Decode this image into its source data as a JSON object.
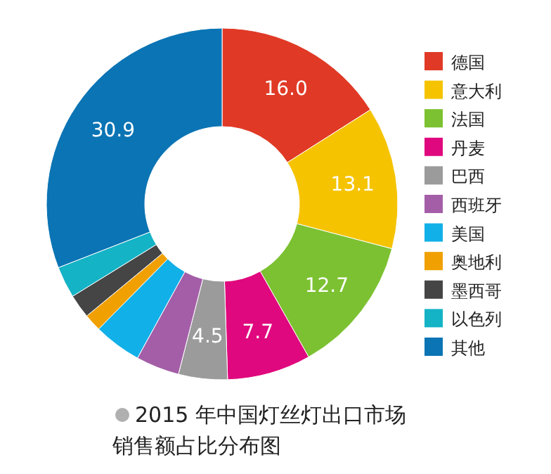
{
  "chart_data": {
    "type": "donut",
    "title": "2015 年中国灯丝灯出口市场销售额占比分布图",
    "categories": [
      "德国",
      "意大利",
      "法国",
      "丹麦",
      "巴西",
      "西班牙",
      "美国",
      "奥地利",
      "墨西哥",
      "以色列",
      "其他"
    ],
    "values": [
      16.0,
      13.1,
      12.7,
      7.7,
      4.5,
      4.0,
      4.4,
      1.6,
      2.2,
      2.9,
      30.9
    ],
    "value_labels": [
      "16.0",
      "13.1",
      "12.7",
      "7.7",
      "4.5",
      null,
      null,
      null,
      null,
      null,
      "30.9"
    ],
    "colors": [
      "#e03a26",
      "#f5c300",
      "#7cc131",
      "#e0087e",
      "#9b9b9b",
      "#a45ea8",
      "#12b0e8",
      "#f0a000",
      "#454545",
      "#14b3c6",
      "#0a74b4"
    ],
    "legend": "right"
  }
}
